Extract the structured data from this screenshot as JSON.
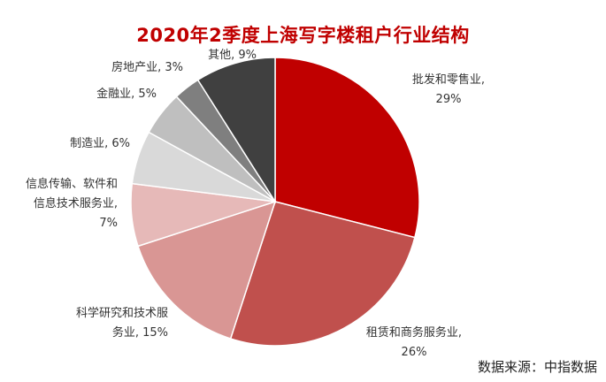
{
  "chart_data": {
    "type": "pie",
    "title": "2020年2季度上海写字楼租户行业结构",
    "slices": [
      {
        "label_lines": [
          "批发和零售业,",
          "29%"
        ],
        "value": 29,
        "color": "#c00000"
      },
      {
        "label_lines": [
          "租赁和商务服务业,",
          "26%"
        ],
        "value": 26,
        "color": "#c0504d"
      },
      {
        "label_lines": [
          "科学研究和技术服",
          "务业, 15%"
        ],
        "value": 15,
        "color": "#d99694"
      },
      {
        "label_lines": [
          "信息传输、软件和",
          "信息技术服务业,",
          "7%"
        ],
        "value": 7,
        "color": "#e6b9b8"
      },
      {
        "label_lines": [
          "制造业, 6%"
        ],
        "value": 6,
        "color": "#d9d9d9"
      },
      {
        "label_lines": [
          "金融业, 5%"
        ],
        "value": 5,
        "color": "#bfbfbf"
      },
      {
        "label_lines": [
          "房地产业, 3%"
        ],
        "value": 3,
        "color": "#7f7f7f"
      },
      {
        "label_lines": [
          "其他, 9%"
        ],
        "value": 9,
        "color": "#404040"
      }
    ],
    "start_angle_deg": 0,
    "direction": "clockwise"
  },
  "source": "数据来源：中指数据"
}
